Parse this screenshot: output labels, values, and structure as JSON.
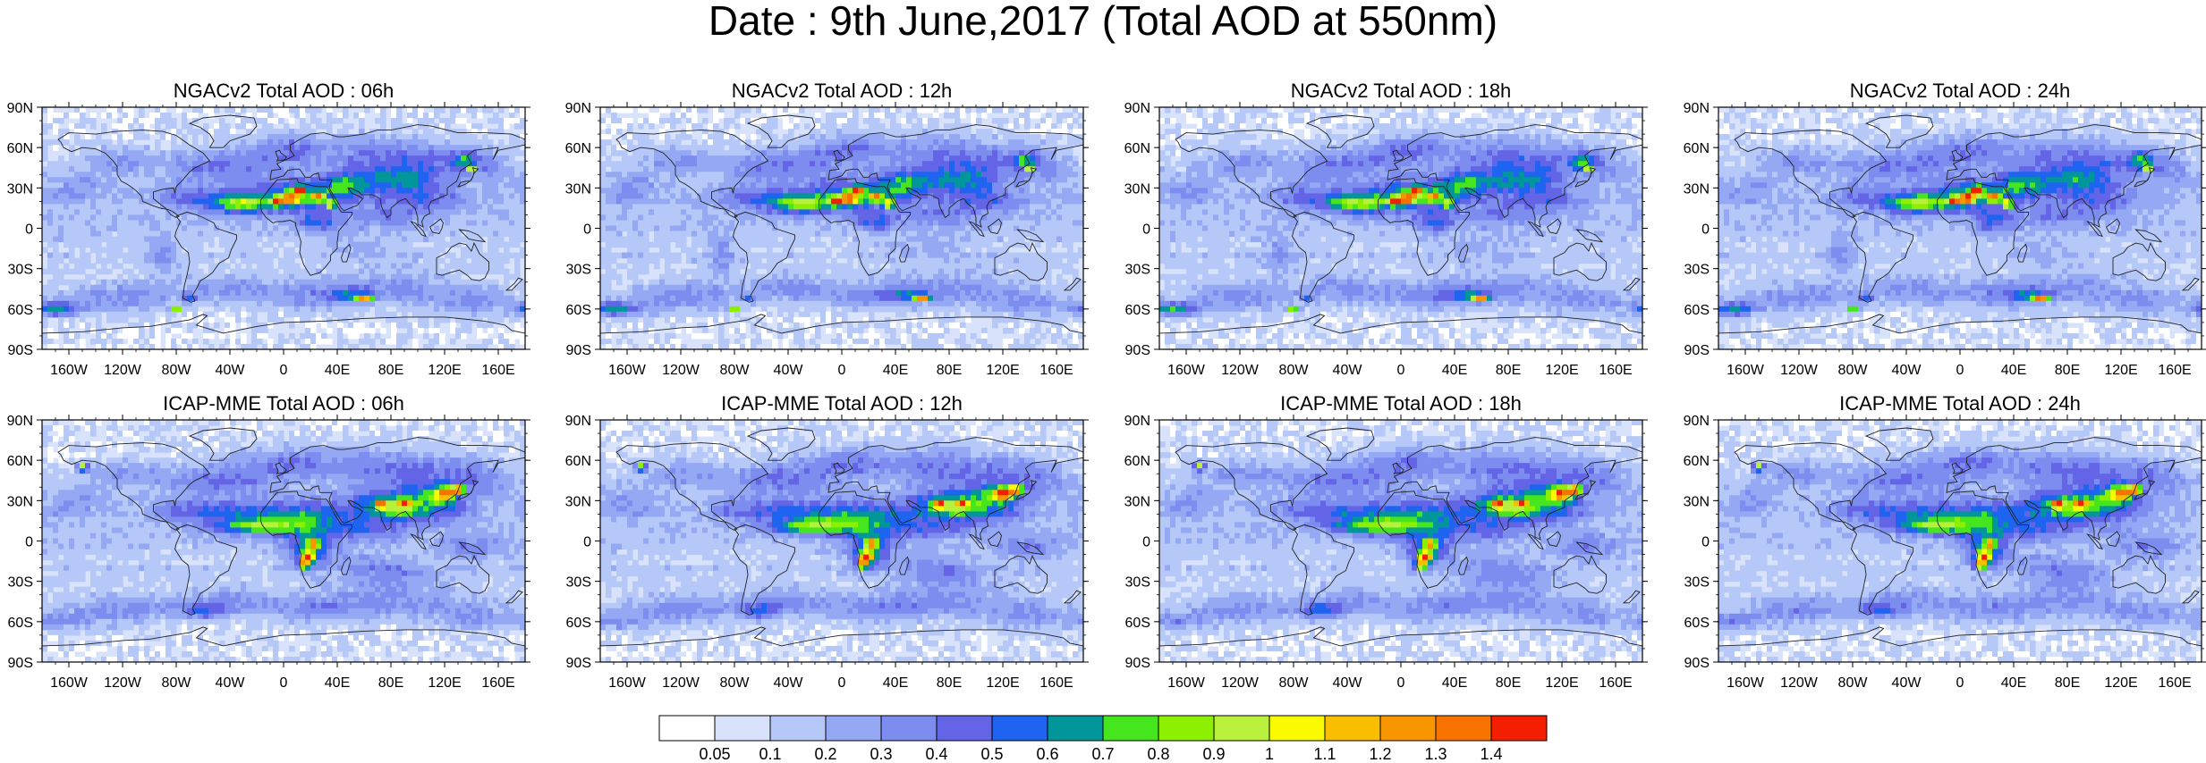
{
  "title": "Date : 9th June,2017 (Total AOD at 550nm)",
  "panels": [
    {
      "title": "NGACv2 Total AOD : 06h",
      "model": "NGACv2",
      "lead": "06h"
    },
    {
      "title": "NGACv2 Total AOD : 12h",
      "model": "NGACv2",
      "lead": "12h"
    },
    {
      "title": "NGACv2 Total AOD : 18h",
      "model": "NGACv2",
      "lead": "18h"
    },
    {
      "title": "NGACv2 Total AOD : 24h",
      "model": "NGACv2",
      "lead": "24h"
    },
    {
      "title": "ICAP-MME Total AOD : 06h",
      "model": "ICAP-MME",
      "lead": "06h"
    },
    {
      "title": "ICAP-MME Total AOD : 12h",
      "model": "ICAP-MME",
      "lead": "12h"
    },
    {
      "title": "ICAP-MME Total AOD : 18h",
      "model": "ICAP-MME",
      "lead": "18h"
    },
    {
      "title": "ICAP-MME Total AOD : 24h",
      "model": "ICAP-MME",
      "lead": "24h"
    }
  ],
  "lat_labels": [
    "90N",
    "60N",
    "30N",
    "0",
    "30S",
    "60S",
    "90S"
  ],
  "lat_values": [
    90,
    60,
    30,
    0,
    -30,
    -60,
    -90
  ],
  "lon_labels": [
    "160W",
    "120W",
    "80W",
    "40W",
    "0",
    "40E",
    "80E",
    "120E",
    "160E"
  ],
  "lon_values": [
    -160,
    -120,
    -80,
    -40,
    0,
    40,
    80,
    120,
    160
  ],
  "colorbar": {
    "labels": [
      "0.05",
      "0.1",
      "0.2",
      "0.3",
      "0.4",
      "0.5",
      "0.6",
      "0.7",
      "0.8",
      "0.9",
      "1",
      "1.1",
      "1.2",
      "1.3",
      "1.4"
    ],
    "colors": [
      "#ffffff",
      "#d8e2fb",
      "#b6c8f7",
      "#94a8f3",
      "#7c8cef",
      "#6464e6",
      "#1e64f0",
      "#00969a",
      "#46e61e",
      "#8cf000",
      "#b9f03c",
      "#fbfb00",
      "#fabe00",
      "#f89600",
      "#f87200",
      "#f41e00"
    ]
  }
}
